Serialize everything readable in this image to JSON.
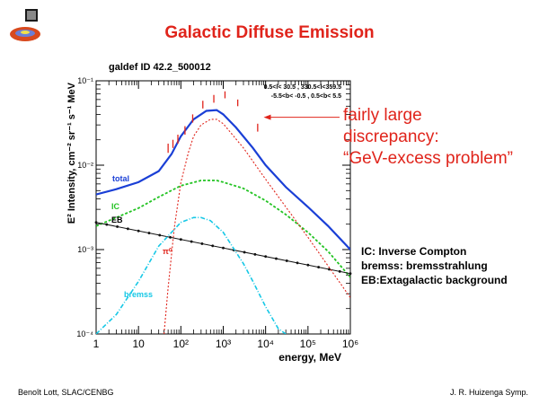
{
  "slide": {
    "title": "Galactic Diffuse Emission",
    "annotation_lines": [
      "fairly large",
      "discrepancy:",
      "“GeV-excess problem”"
    ],
    "legend_notes": [
      "IC: Inverse Compton",
      "bremss: bremsstrahlung",
      "EB:Extagalactic background"
    ],
    "footer_left": "Benoît Lott, SLAC/CENBG",
    "footer_right": "J. R. Huizenga Symp."
  },
  "chart_data": {
    "type": "line",
    "title": "galdef ID 42.2_500012",
    "region_line1": "0.5<l< 30.5 , 330.5<l<359.5",
    "region_line2": "-5.5<b< -0.5 ,  0.5<b< 5.5",
    "xlabel": "energy, MeV",
    "ylabel": "E² Intensity, cm⁻² sr⁻¹ s⁻¹ MeV",
    "xscale": "log",
    "yscale": "log",
    "xlim": [
      1,
      1000000
    ],
    "ylim": [
      0.0001,
      0.1
    ],
    "x_ticks": [
      "1",
      "10",
      "10²",
      "10³",
      "10⁴",
      "10⁵",
      "10⁶"
    ],
    "y_ticks": [
      "10⁻⁴",
      "10⁻³",
      "10⁻²",
      "10⁻¹"
    ],
    "colors": {
      "total": "#1a3fd6",
      "ic": "#22c322",
      "eb": "#111111",
      "pi0": "#e0241b",
      "bremss": "#17c8e6",
      "data": "#e0241b",
      "arrow": "#e0241b"
    },
    "series": [
      {
        "name": "total",
        "label": "total",
        "x": [
          1,
          3,
          10,
          30,
          60,
          100,
          200,
          400,
          700,
          1000,
          2000,
          5000,
          10000,
          30000,
          100000,
          300000,
          1000000
        ],
        "y": [
          0.0045,
          0.0052,
          0.0063,
          0.0085,
          0.0135,
          0.022,
          0.035,
          0.044,
          0.045,
          0.04,
          0.028,
          0.016,
          0.01,
          0.0055,
          0.0032,
          0.0019,
          0.001
        ]
      },
      {
        "name": "IC",
        "label": "IC",
        "x": [
          1,
          3,
          10,
          30,
          100,
          300,
          700,
          1000,
          3000,
          10000,
          30000,
          100000,
          300000,
          1000000
        ],
        "y": [
          0.0019,
          0.0024,
          0.0031,
          0.0042,
          0.0057,
          0.0066,
          0.0066,
          0.0063,
          0.0053,
          0.0038,
          0.0026,
          0.0016,
          0.00095,
          0.00047
        ]
      },
      {
        "name": "EB",
        "label": "EB",
        "x": [
          1,
          1000000
        ],
        "y": [
          0.0021,
          0.00052
        ]
      },
      {
        "name": "pi0",
        "label": "π⁰",
        "x": [
          40,
          50,
          70,
          100,
          150,
          200,
          300,
          500,
          700,
          1000,
          3000,
          10000,
          100000,
          1000000
        ],
        "y": [
          0.0001,
          0.00035,
          0.0018,
          0.0062,
          0.014,
          0.022,
          0.03,
          0.035,
          0.035,
          0.031,
          0.016,
          0.0068,
          0.0014,
          0.00027
        ]
      },
      {
        "name": "bremss",
        "label": "bremss",
        "x": [
          1,
          3,
          10,
          30,
          100,
          200,
          300,
          500,
          1000,
          3000,
          5000,
          10000,
          20000,
          30000
        ],
        "y": [
          0.0001,
          0.00017,
          0.00042,
          0.0011,
          0.0021,
          0.0024,
          0.0024,
          0.0022,
          0.0016,
          0.00068,
          0.00042,
          0.00021,
          0.000115,
          0.0001
        ]
      }
    ],
    "data_points": [
      {
        "x": 50,
        "ylo": 0.014,
        "yhi": 0.018
      },
      {
        "x": 65,
        "ylo": 0.016,
        "yhi": 0.02
      },
      {
        "x": 85,
        "ylo": 0.018,
        "yhi": 0.023
      },
      {
        "x": 125,
        "ylo": 0.023,
        "yhi": 0.029
      },
      {
        "x": 190,
        "ylo": 0.032,
        "yhi": 0.04
      },
      {
        "x": 330,
        "ylo": 0.047,
        "yhi": 0.058
      },
      {
        "x": 600,
        "ylo": 0.055,
        "yhi": 0.068
      },
      {
        "x": 1100,
        "ylo": 0.062,
        "yhi": 0.075
      },
      {
        "x": 2200,
        "ylo": 0.05,
        "yhi": 0.06
      },
      {
        "x": 6500,
        "ylo": 0.025,
        "yhi": 0.031
      }
    ],
    "arrow_target": {
      "x": 9000,
      "y": 0.037
    }
  }
}
